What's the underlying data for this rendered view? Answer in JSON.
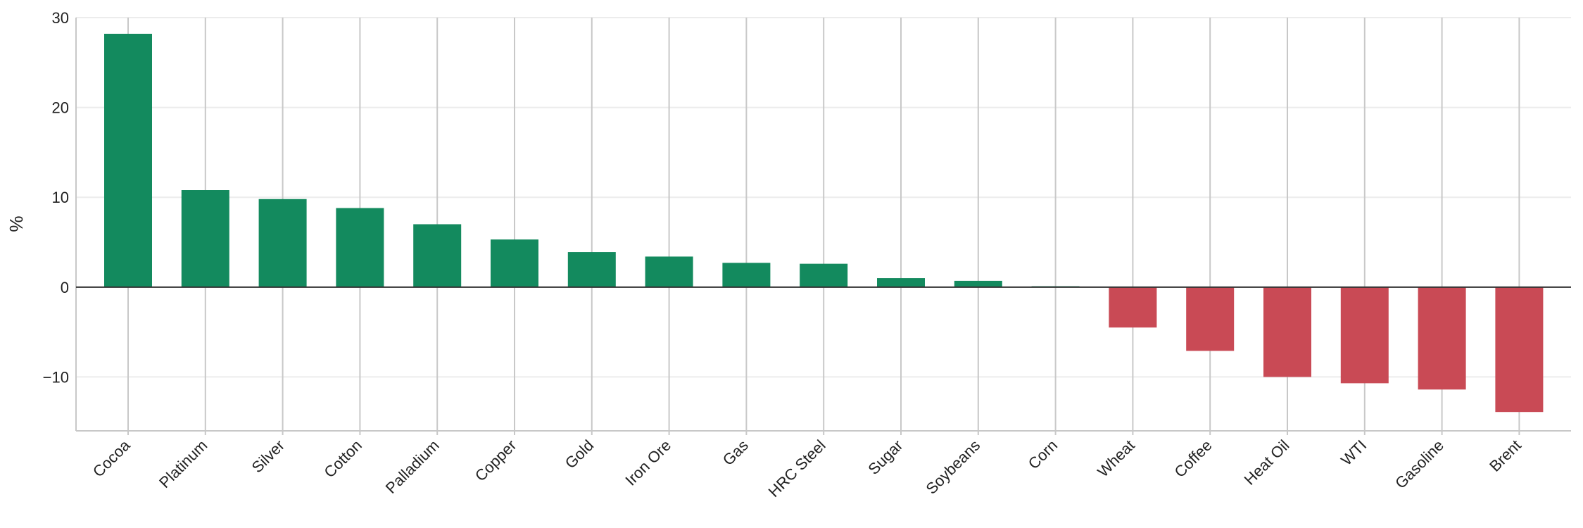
{
  "chart_data": {
    "type": "bar",
    "title": "",
    "xlabel": "",
    "ylabel": "%",
    "ylim": [
      -16,
      30
    ],
    "yticks": [
      -10,
      0,
      10,
      20,
      30
    ],
    "ytick_labels": [
      "−10",
      "0",
      "10",
      "20",
      "30"
    ],
    "grid": true,
    "categories": [
      "Cocoa",
      "Platinum",
      "Silver",
      "Cotton",
      "Palladium",
      "Copper",
      "Gold",
      "Iron Ore",
      "Gas",
      "HRC Steel",
      "Sugar",
      "Soybeans",
      "Corn",
      "Wheat",
      "Coffee",
      "Heat Oil",
      "WTI",
      "Gasoline",
      "Brent"
    ],
    "values": [
      28.2,
      10.8,
      9.8,
      8.8,
      7.0,
      5.3,
      3.9,
      3.4,
      2.7,
      2.6,
      1.0,
      0.7,
      0.1,
      -4.5,
      -7.1,
      -10.0,
      -10.7,
      -11.4,
      -13.9
    ],
    "colors": {
      "positive": "#138a5e",
      "negative": "#c94a55",
      "zero_line": "#333333",
      "grid": "#ececec",
      "vertical_grid": "#c8c8c8",
      "axis": "#c8c8c8"
    }
  }
}
